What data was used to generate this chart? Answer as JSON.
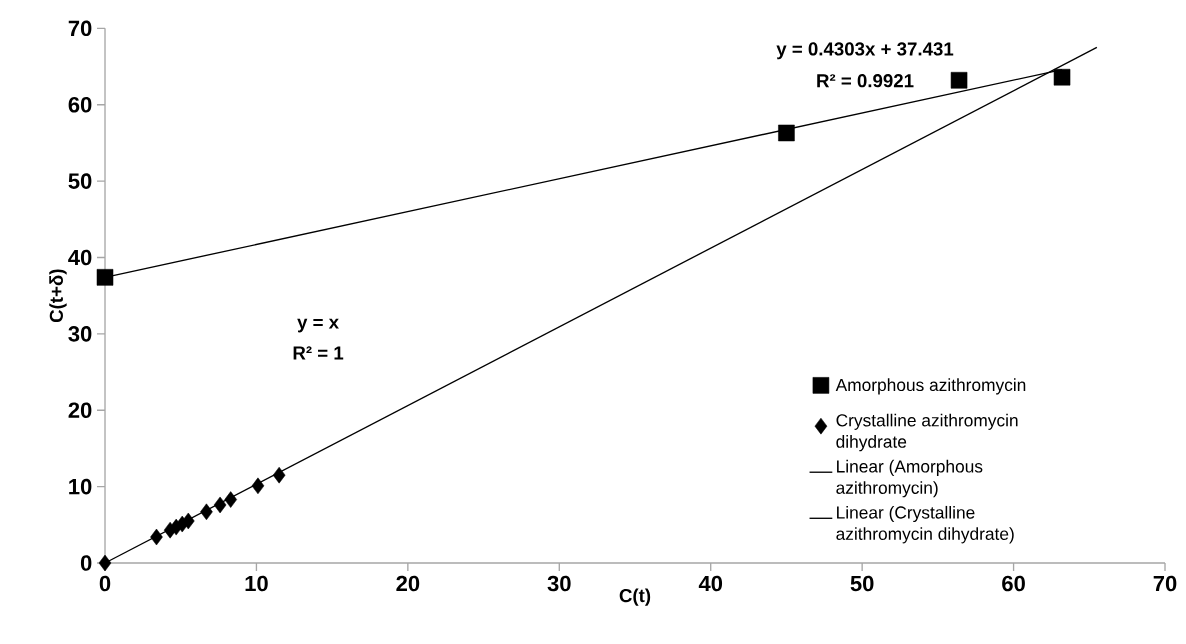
{
  "chart_data": {
    "type": "scatter",
    "xlabel": "C(t)",
    "ylabel": "C(t+δ)",
    "xlim": [
      0,
      70
    ],
    "ylim": [
      0,
      70
    ],
    "xticks": [
      0,
      10,
      20,
      30,
      40,
      50,
      60,
      70
    ],
    "yticks": [
      0,
      10,
      20,
      30,
      40,
      50,
      60,
      70
    ],
    "grid": false,
    "legend": "bottom right",
    "series": [
      {
        "name": "Amorphous azithromycin",
        "marker": "square",
        "color": "#000000",
        "x": [
          0,
          45,
          56.4,
          63.2
        ],
        "values": [
          37.4,
          56.3,
          63.2,
          63.6
        ]
      },
      {
        "name": "Crystalline azithromycin dihydrate",
        "marker": "diamond",
        "color": "#000000",
        "x": [
          0,
          3.4,
          4.3,
          4.7,
          5.1,
          5.5,
          6.7,
          7.6,
          8.3,
          10.1,
          11.5
        ],
        "values": [
          0,
          3.4,
          4.3,
          4.7,
          5.1,
          5.5,
          6.7,
          7.6,
          8.3,
          10.1,
          11.5
        ]
      },
      {
        "name": "Linear (Amorphous azithromycin)",
        "type": "line",
        "marker": "none",
        "color": "#000000",
        "x": [
          0,
          63.2
        ],
        "values": [
          37.4,
          64.6
        ]
      },
      {
        "name": "Linear (Crystalline azithromycin dihydrate)",
        "type": "line",
        "marker": "none",
        "color": "#000000",
        "x": [
          0,
          65.5
        ],
        "values": [
          0,
          67.5
        ]
      }
    ],
    "annotations": [
      "y = 0.4303x + 37.431",
      "R² = 0.9921",
      "y = x",
      "R² = 1"
    ]
  }
}
